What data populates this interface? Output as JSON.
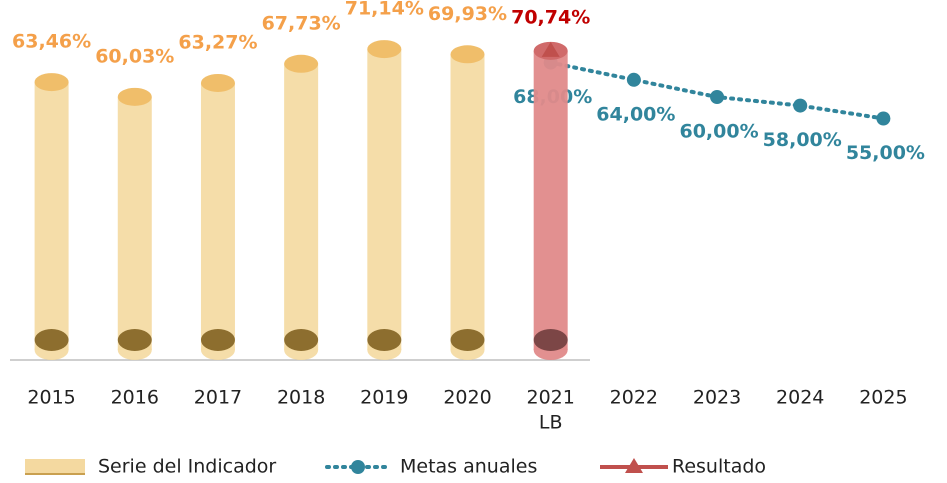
{
  "chart_data": {
    "type": "bar",
    "categories": [
      "2015",
      "2016",
      "2017",
      "2018",
      "2019",
      "2020",
      "2021",
      "2022",
      "2023",
      "2024",
      "2025"
    ],
    "sublabels": [
      null,
      null,
      null,
      null,
      null,
      null,
      "LB",
      null,
      null,
      null,
      null
    ],
    "ylim": [
      0,
      80
    ],
    "series": [
      {
        "name": "Serie del Indicador",
        "type": "bar",
        "color": "#f4d9a0",
        "values": [
          63.46,
          60.03,
          63.27,
          67.73,
          71.14,
          69.93,
          null,
          null,
          null,
          null,
          null
        ],
        "value_labels": [
          "63,46%",
          "60,03%",
          "63,27%",
          "67,73%",
          "71,14%",
          "69,93%",
          null,
          null,
          null,
          null,
          null
        ]
      },
      {
        "name": "Metas anuales",
        "type": "line",
        "color": "#31859c",
        "values": [
          null,
          null,
          null,
          null,
          null,
          null,
          68,
          64,
          60,
          58,
          55
        ],
        "value_labels": [
          null,
          null,
          null,
          null,
          null,
          null,
          "68,00%",
          "64,00%",
          "60,00%",
          "58,00%",
          "55,00%"
        ]
      },
      {
        "name": "Resultado",
        "type": "result",
        "color": "#c0504d",
        "values": [
          null,
          null,
          null,
          null,
          null,
          null,
          70.74,
          null,
          null,
          null,
          null
        ],
        "value_labels": [
          null,
          null,
          null,
          null,
          null,
          null,
          "70,74%",
          null,
          null,
          null,
          null
        ]
      }
    ]
  }
}
